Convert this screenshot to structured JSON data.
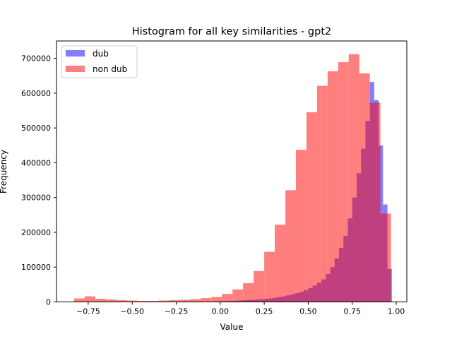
{
  "chart_data": {
    "type": "bar",
    "title": "Histogram for all key similarities - gpt2",
    "xlabel": "Value",
    "ylabel": "Frequency",
    "xlim": [
      -0.93,
      1.06
    ],
    "ylim": [
      0,
      750000
    ],
    "xticks": [
      -0.75,
      -0.5,
      -0.25,
      0.0,
      0.25,
      0.5,
      0.75,
      1.0
    ],
    "xtick_labels": [
      "−0.75",
      "−0.50",
      "−0.25",
      "0.00",
      "0.25",
      "0.50",
      "0.75",
      "1.00"
    ],
    "yticks": [
      0,
      100000,
      200000,
      300000,
      400000,
      500000,
      600000,
      700000
    ],
    "ytick_labels": [
      "0",
      "100000",
      "200000",
      "300000",
      "400000",
      "500000",
      "600000",
      "700000"
    ],
    "legend_position": "upper-left",
    "grid": false,
    "series": [
      {
        "name": "dub",
        "color": "#0000ff",
        "alpha": 0.5,
        "bin_edges": [
          -0.05,
          -0.025,
          0.0,
          0.025,
          0.05,
          0.075,
          0.1,
          0.125,
          0.15,
          0.175,
          0.2,
          0.225,
          0.25,
          0.275,
          0.3,
          0.325,
          0.35,
          0.375,
          0.4,
          0.425,
          0.45,
          0.475,
          0.5,
          0.525,
          0.55,
          0.575,
          0.6,
          0.625,
          0.65,
          0.675,
          0.7,
          0.725,
          0.75,
          0.775,
          0.8,
          0.825,
          0.85,
          0.875,
          0.9,
          0.925,
          0.95,
          0.975
        ],
        "values": [
          1000,
          1500,
          2000,
          2500,
          3000,
          3500,
          4000,
          5000,
          5500,
          6000,
          7000,
          8000,
          9000,
          10000,
          12000,
          14000,
          16000,
          19000,
          22000,
          25000,
          29000,
          34000,
          40000,
          47000,
          55000,
          65000,
          80000,
          100000,
          125000,
          155000,
          190000,
          240000,
          300000,
          370000,
          440000,
          520000,
          632000,
          580000,
          450000,
          280000,
          95000
        ]
      },
      {
        "name": "non dub",
        "color": "#ff0000",
        "alpha": 0.5,
        "bin_edges": [
          -0.83,
          -0.77,
          -0.71,
          -0.65,
          -0.59,
          -0.53,
          -0.47,
          -0.41,
          -0.35,
          -0.29,
          -0.23,
          -0.17,
          -0.11,
          -0.05,
          0.01,
          0.07,
          0.13,
          0.19,
          0.25,
          0.31,
          0.37,
          0.43,
          0.49,
          0.55,
          0.61,
          0.67,
          0.73,
          0.79,
          0.85,
          0.91,
          0.97
        ],
        "values": [
          10000,
          16000,
          9000,
          7000,
          5000,
          4000,
          3000,
          3000,
          4000,
          5000,
          6000,
          8000,
          11000,
          14000,
          23000,
          36000,
          54000,
          89000,
          144000,
          222000,
          321000,
          437000,
          545000,
          621000,
          663000,
          689000,
          712000,
          657000,
          573000,
          254000
        ]
      }
    ]
  }
}
